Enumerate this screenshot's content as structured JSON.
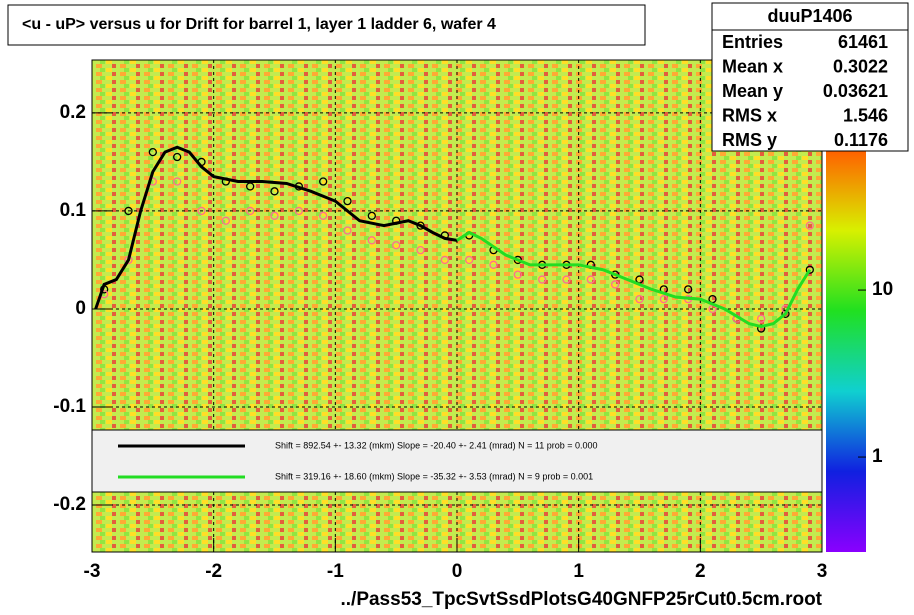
{
  "chart_data": {
    "type": "profile",
    "title": "<u - uP>       versus   u for Drift for barrel 1, layer 1 ladder 6, wafer 4",
    "x_label": "../Pass53_TpcSvtSsdPlotsG40GNFP25rCut0.5cm.root",
    "xlim": [
      -3,
      3
    ],
    "xticks": [
      -3,
      -2,
      -1,
      0,
      1,
      2,
      3
    ],
    "ylim": [
      -0.248,
      0.254
    ],
    "yticks": [
      -0.2,
      -0.1,
      0,
      0.1,
      0.2
    ],
    "zlim": [
      0.27,
      69
    ],
    "zticks": [
      1,
      10
    ],
    "zlog": true,
    "grid": true,
    "stats": {
      "name": "duuP1406",
      "rows": [
        [
          "Entries",
          61461
        ],
        [
          "Mean x",
          0.3022
        ],
        [
          "Mean y",
          0.03621
        ],
        [
          "RMS x",
          1.546
        ],
        [
          "RMS y",
          0.1176
        ]
      ]
    },
    "points": [
      {
        "color": "#000000",
        "x": [
          -2.9,
          -2.7,
          -2.5,
          -2.3,
          -2.1,
          -1.9,
          -1.7,
          -1.5,
          -1.3,
          -1.1,
          -0.9,
          -0.7,
          -0.5,
          -0.3,
          -0.1,
          0.1,
          0.3,
          0.5,
          0.7,
          0.9,
          1.1,
          1.3,
          1.5,
          1.7,
          1.9,
          2.1,
          2.3,
          2.5,
          2.7,
          2.9
        ],
        "values": [
          0.02,
          0.1,
          0.16,
          0.155,
          0.15,
          0.13,
          0.125,
          0.12,
          0.125,
          0.13,
          0.11,
          0.095,
          0.09,
          0.085,
          0.075,
          0.075,
          0.06,
          0.05,
          0.045,
          0.045,
          0.045,
          0.035,
          0.03,
          0.02,
          0.02,
          0.01,
          -0.01,
          -0.02,
          -0.005,
          0.04
        ]
      },
      {
        "color": "#ff6f8f",
        "x": [
          -2.9,
          -2.7,
          -2.5,
          -2.3,
          -2.1,
          -1.9,
          -1.7,
          -1.5,
          -1.3,
          -1.1,
          -0.9,
          -0.7,
          -0.5,
          -0.3,
          -0.1,
          0.1,
          0.3,
          0.5,
          0.7,
          0.9,
          1.1,
          1.3,
          1.5,
          1.7,
          1.9,
          2.1,
          2.3,
          2.5,
          2.7,
          2.9
        ],
        "values": [
          0.015,
          0.05,
          0.13,
          0.13,
          0.1,
          0.09,
          0.1,
          0.095,
          0.1,
          0.095,
          0.08,
          0.07,
          0.065,
          0.06,
          0.05,
          0.05,
          0.045,
          0.035,
          0.03,
          0.03,
          0.03,
          0.025,
          0.01,
          0.01,
          0.01,
          0.0,
          -0.01,
          -0.01,
          0.0,
          0.085
        ]
      }
    ],
    "series": [
      {
        "name": "Shift =   892.54 +- 13.32 (mkm) Slope =   -20.40 +- 2.41 (mrad)  N = 11 prob = 0.000",
        "color": "#000000",
        "x": [
          -2.97,
          -2.9,
          -2.8,
          -2.7,
          -2.6,
          -2.5,
          -2.4,
          -2.3,
          -2.2,
          -2.1,
          -2.0,
          -1.8,
          -1.6,
          -1.4,
          -1.2,
          -1.0,
          -0.8,
          -0.6,
          -0.4,
          -0.3,
          -0.2,
          -0.1,
          0
        ],
        "values": [
          0.0,
          0.025,
          0.03,
          0.05,
          0.1,
          0.14,
          0.16,
          0.165,
          0.16,
          0.145,
          0.135,
          0.13,
          0.13,
          0.128,
          0.12,
          0.11,
          0.09,
          0.085,
          0.09,
          0.085,
          0.078,
          0.072,
          0.07
        ]
      },
      {
        "name": "Shift =   319.16 +- 18.60 (mkm) Slope =   -35.32 +- 3.53 (mrad)  N = 9 prob = 0.001",
        "color": "#22dd22",
        "x": [
          0,
          0.1,
          0.2,
          0.4,
          0.6,
          0.8,
          1.0,
          1.2,
          1.4,
          1.6,
          1.8,
          2.0,
          2.2,
          2.4,
          2.5,
          2.6,
          2.7,
          2.8,
          2.9
        ],
        "values": [
          0.07,
          0.078,
          0.072,
          0.055,
          0.045,
          0.045,
          0.045,
          0.04,
          0.03,
          0.02,
          0.012,
          0.01,
          0.0,
          -0.015,
          -0.018,
          -0.015,
          -0.005,
          0.02,
          0.04
        ]
      }
    ]
  }
}
